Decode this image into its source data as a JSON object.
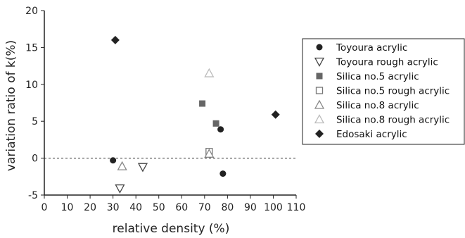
{
  "chart_data": {
    "type": "scatter",
    "title": "",
    "xlabel": "relative density (%)",
    "ylabel": "variation ratio of k(%)",
    "xlim": [
      0,
      110
    ],
    "ylim": [
      -5,
      20
    ],
    "xticks": [
      0,
      10,
      20,
      30,
      40,
      50,
      60,
      70,
      80,
      90,
      100,
      110
    ],
    "yticks": [
      -5,
      0,
      5,
      10,
      15,
      20
    ],
    "grid": false,
    "reference_line": {
      "y": 0,
      "style": "dashed"
    },
    "legend_position": "right",
    "series": [
      {
        "name": "Toyoura acrylic",
        "marker": "filled-circle",
        "color": "#222222",
        "points": [
          [
            30,
            -0.3
          ],
          [
            77,
            3.9
          ],
          [
            78,
            -2.1
          ]
        ]
      },
      {
        "name": "Toyoura rough acrylic",
        "marker": "open-triangle-down",
        "color": "#444444",
        "points": [
          [
            33,
            -4.1
          ],
          [
            43,
            -1.2
          ]
        ]
      },
      {
        "name": "Silica no.5 acrylic",
        "marker": "filled-square",
        "color": "#666666",
        "points": [
          [
            69,
            7.4
          ],
          [
            75,
            4.7
          ]
        ]
      },
      {
        "name": "Silica no.5 rough acrylic",
        "marker": "open-square",
        "color": "#777777",
        "points": [
          [
            72,
            0.9
          ]
        ]
      },
      {
        "name": "Silica no.8 acrylic",
        "marker": "open-triangle-up",
        "color": "#888888",
        "points": [
          [
            34,
            -1.1
          ],
          [
            72,
            0.6
          ]
        ]
      },
      {
        "name": "Silica no.8 rough acrylic",
        "marker": "open-triangle-up-light",
        "color": "#bbbbbb",
        "points": [
          [
            72,
            11.5
          ]
        ]
      },
      {
        "name": "Edosaki acrylic",
        "marker": "filled-diamond",
        "color": "#222222",
        "points": [
          [
            31,
            16.0
          ],
          [
            101,
            5.9
          ]
        ]
      }
    ]
  }
}
